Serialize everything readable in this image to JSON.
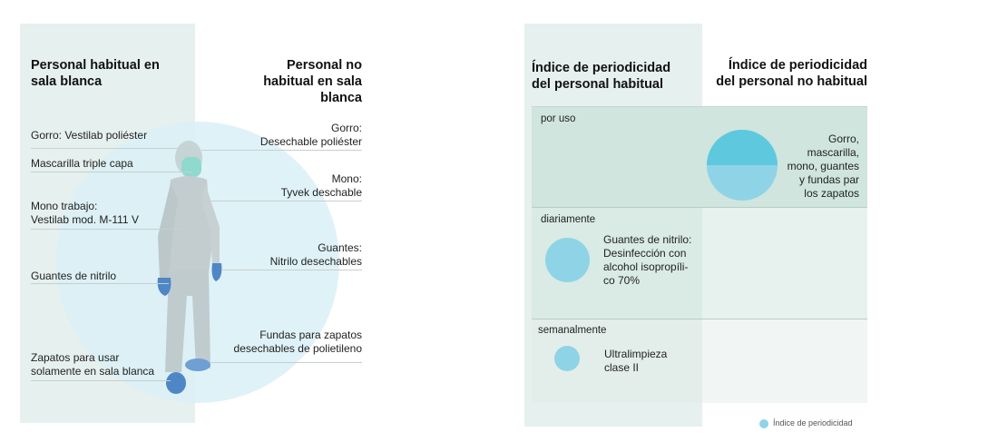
{
  "left": {
    "habitual_title": "Personal habitual en\nsala blanca",
    "no_habitual_title": "Personal no\nhabitual en sala\nblanca",
    "habitual_labels": [
      "Gorro: Vestilab poliéster",
      "Mascarilla triple capa",
      "Mono trabajo:\nVestilab mod. M-111 V",
      "Guantes de nitrilo",
      "Zapatos para usar\nsolamente en sala blanca"
    ],
    "no_habitual_labels": [
      "Gorro:\nDesechable poliéster",
      "Mono:\nTyvek deschable",
      "Guantes:\nNitrilo desechables",
      "Fundas para zapatos\ndesechables de polietileno"
    ]
  },
  "right": {
    "habitual_title": "Índice de periodicidad\ndel personal habitual",
    "no_habitual_title": "Índice de periodicidad\ndel personal no habitual",
    "rows": [
      {
        "label": "por uso",
        "habitual_text": "",
        "no_habitual_text": "Gorro,\nmascarilla,\nmono, guantes\ny fundas par\nlos zapatos"
      },
      {
        "label": "diariamente",
        "habitual_text": "Guantes de nitrilo:\nDesinfección con\nalcohol isopropíli-\nco 70%",
        "no_habitual_text": ""
      },
      {
        "label": "semanalmente",
        "habitual_text": "Ultralimpieza\nclase II",
        "no_habitual_text": ""
      }
    ],
    "legend": "Índice de periodicidad"
  },
  "colors": {
    "panel": "#e6f0ee",
    "halo": "#d9f0f6",
    "circle_dark": "#5ec9de",
    "circle_light": "#8fd3e6",
    "glove": "#4f86c6",
    "mask": "#8fd9cf"
  }
}
